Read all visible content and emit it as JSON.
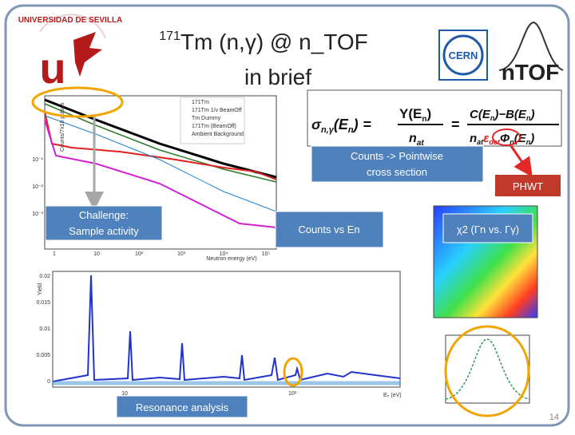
{
  "title": {
    "mass": "171",
    "main": "Tm (n,γ) @ n_TOF",
    "line2": "in brief"
  },
  "logos": {
    "university": "UNIVERSIDAD DE SEVILLA",
    "university_mark": "u",
    "cern": "CERN",
    "ntof": "nTOF"
  },
  "formula": {
    "sigma": "σ",
    "sigma_sub": "n,γ",
    "arg": "(E",
    "arg_sub": "n",
    "arg_end": ")",
    "eq1": "=",
    "yield": "Y(E",
    "yield_sub": "n",
    "yield_end": ")",
    "nat": "n",
    "nat_sub": "at",
    "eq2": "=",
    "num": "C(E",
    "num_sub": "n",
    "num_mid": ")−B(E",
    "num_sub2": "n",
    "num_end": ")",
    "den": "n",
    "den_sub": "at",
    "eps": "ε",
    "eps_sub": "det",
    "phi": "Φ",
    "phi_sub": "n",
    "phi_arg": "(E",
    "phi_arg_sub": "n",
    "phi_end": ")"
  },
  "callouts": {
    "pointwise": [
      "Counts -> Pointwise",
      "cross section"
    ],
    "phwt": "PHWT",
    "challenge": [
      "Challenge:",
      "Sample activity"
    ],
    "counts_vs_en": "Counts vs En",
    "chi2": "χ2 (Γn vs. Γγ)",
    "resonance": "Resonance analysis"
  },
  "top_plot": {
    "legend": [
      "171Tm",
      "171Tm 1/v BeamOff",
      "Tm Dummy",
      "171Tm (BeamOff)",
      "Ambient Background"
    ],
    "x_label": "Neutron energy (eV)",
    "y_label": "Counts/7x10 pulses",
    "xticks": [
      "1",
      "10",
      "10²",
      "10³",
      "10⁴",
      "10⁵"
    ],
    "yticks": [
      "10⁻¹",
      "10⁻²",
      "10⁻³"
    ]
  },
  "bottom_plot": {
    "y_label": "Yield",
    "yticks": [
      "0.02",
      "0.015",
      "0.01",
      "0.005",
      "0"
    ],
    "xticks": [
      "10",
      "10²"
    ],
    "x_label": "Eₙ (eV)"
  },
  "page_number": "14"
}
